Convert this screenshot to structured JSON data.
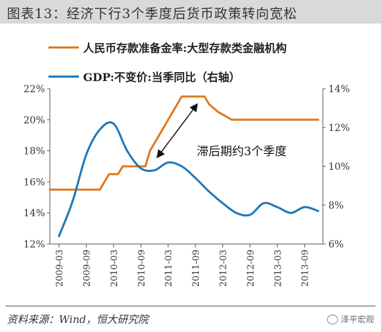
{
  "title": "图表13：经济下行3个季度后货币政策转向宽松",
  "source": "资料来源：Wind，恒大研究院",
  "watermark": "泽平宏观",
  "chart_data": {
    "type": "line",
    "legend_placement": "top",
    "grid": false,
    "annotation": "滞后期约3个季度",
    "x_tick_labels": [
      "2009-03",
      "2009-09",
      "2010-03",
      "2010-09",
      "2011-03",
      "2011-09",
      "2012-03",
      "2012-09",
      "2013-03",
      "2013-09"
    ],
    "x_range": [
      "2009-01",
      "2014-01"
    ],
    "y_left": {
      "ticks": [
        "12%",
        "14%",
        "16%",
        "18%",
        "20%",
        "22%"
      ],
      "range": [
        12,
        22
      ]
    },
    "y_right": {
      "ticks": [
        "6%",
        "8%",
        "10%",
        "12%",
        "14%"
      ],
      "range": [
        6,
        14
      ]
    },
    "series": [
      {
        "name": "人民币存款准备金率:大型存款类金融机构",
        "axis": "left",
        "color": "#e07a20",
        "points": [
          [
            "2009-01",
            15.5
          ],
          [
            "2009-12",
            15.5
          ],
          [
            "2010-01",
            16.0
          ],
          [
            "2010-02",
            16.5
          ],
          [
            "2010-04",
            16.5
          ],
          [
            "2010-05",
            17.0
          ],
          [
            "2010-10",
            17.0
          ],
          [
            "2010-11",
            18.0
          ],
          [
            "2011-01",
            19.0
          ],
          [
            "2011-02",
            19.5
          ],
          [
            "2011-03",
            20.0
          ],
          [
            "2011-04",
            20.5
          ],
          [
            "2011-05",
            21.0
          ],
          [
            "2011-06",
            21.5
          ],
          [
            "2011-11",
            21.5
          ],
          [
            "2011-12",
            21.0
          ],
          [
            "2012-02",
            20.5
          ],
          [
            "2012-05",
            20.0
          ],
          [
            "2013-12",
            20.0
          ]
        ]
      },
      {
        "name": "GDP:不变价:当季同比（右轴）",
        "axis": "right",
        "color": "#2178b8",
        "points": [
          [
            "2009-03",
            6.4
          ],
          [
            "2009-06",
            8.2
          ],
          [
            "2009-09",
            10.6
          ],
          [
            "2009-12",
            11.9
          ],
          [
            "2010-03",
            12.2
          ],
          [
            "2010-06",
            10.8
          ],
          [
            "2010-09",
            9.9
          ],
          [
            "2010-12",
            9.8
          ],
          [
            "2011-03",
            10.2
          ],
          [
            "2011-06",
            10.0
          ],
          [
            "2011-09",
            9.4
          ],
          [
            "2011-12",
            8.7
          ],
          [
            "2012-03",
            8.1
          ],
          [
            "2012-06",
            7.6
          ],
          [
            "2012-09",
            7.5
          ],
          [
            "2012-12",
            8.1
          ],
          [
            "2013-03",
            7.9
          ],
          [
            "2013-06",
            7.6
          ],
          [
            "2013-09",
            7.9
          ],
          [
            "2013-12",
            7.7
          ]
        ]
      }
    ]
  }
}
